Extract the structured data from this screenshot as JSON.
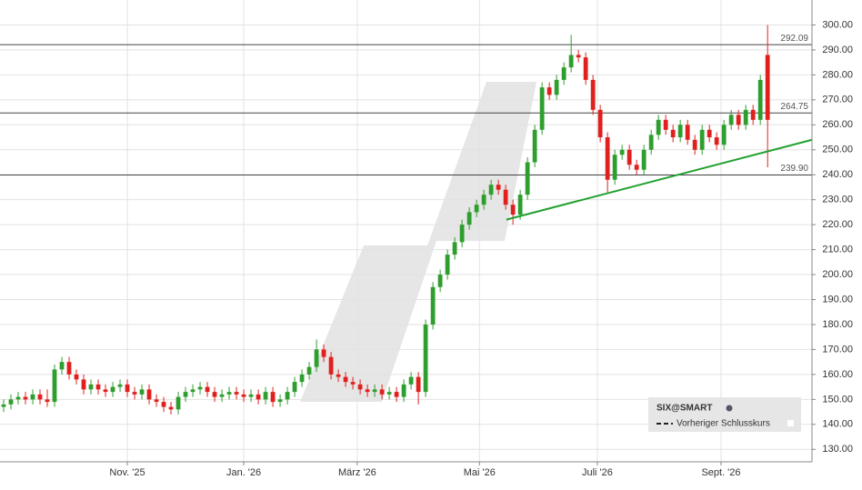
{
  "chart_data": {
    "type": "candlestick",
    "xlim": [
      -0.5,
      111.1
    ],
    "xticks": [
      {
        "value": 17,
        "label": "Nov. '25"
      },
      {
        "value": 33,
        "label": "Jan. '26"
      },
      {
        "value": 48.6,
        "label": "März '26"
      },
      {
        "value": 65.4,
        "label": "Mai '26"
      },
      {
        "value": 81.6,
        "label": "Juli '26"
      },
      {
        "value": 98.6,
        "label": "Sept. '26"
      }
    ],
    "ylim": [
      125,
      310
    ],
    "yticks": [
      {
        "value": 130,
        "label": "130.00"
      },
      {
        "value": 140,
        "label": "140.00"
      },
      {
        "value": 150,
        "label": "150.00"
      },
      {
        "value": 160,
        "label": "160.00"
      },
      {
        "value": 170,
        "label": "170.00"
      },
      {
        "value": 180,
        "label": "180.00"
      },
      {
        "value": 190,
        "label": "190.00"
      },
      {
        "value": 200,
        "label": "200.00"
      },
      {
        "value": 210,
        "label": "210.00"
      },
      {
        "value": 220,
        "label": "220.00"
      },
      {
        "value": 230,
        "label": "230.00"
      },
      {
        "value": 240,
        "label": "240.00"
      },
      {
        "value": 250,
        "label": "250.00"
      },
      {
        "value": 260,
        "label": "260.00"
      },
      {
        "value": 270,
        "label": "270.00"
      },
      {
        "value": 280,
        "label": "280.00"
      },
      {
        "value": 290,
        "label": "290.00"
      },
      {
        "value": 300,
        "label": "300.00"
      }
    ],
    "grid": true,
    "up_color": "#2e9e2e",
    "down_color": "#e0201e",
    "open": [
      147,
      148,
      150,
      151,
      150,
      152,
      150,
      149,
      162,
      165,
      160,
      158,
      154,
      156,
      154,
      153,
      155,
      156,
      153,
      152,
      154,
      150,
      149,
      147,
      146,
      151,
      153,
      154,
      155,
      153,
      151,
      152,
      153,
      152,
      151,
      152,
      150,
      153,
      149,
      150,
      153,
      157,
      160,
      163,
      170,
      167,
      160,
      159,
      157,
      156,
      154,
      153,
      154,
      152,
      153,
      151,
      156,
      159,
      153,
      180,
      195,
      200,
      208,
      213,
      220,
      225,
      228,
      232,
      236,
      234,
      228,
      224,
      232,
      245,
      258,
      275,
      272,
      278,
      283,
      288,
      287,
      278,
      266,
      255,
      238,
      248,
      250,
      244,
      242,
      250,
      256,
      262,
      258,
      255,
      260,
      254,
      250,
      258,
      255,
      252,
      260,
      264,
      260,
      266,
      262,
      288
    ],
    "high": [
      150,
      152,
      153,
      153,
      154,
      154,
      154,
      164,
      167,
      167,
      162,
      160,
      158,
      158,
      156,
      157,
      158,
      158,
      155,
      156,
      156,
      152,
      151,
      149,
      153,
      155,
      156,
      157,
      157,
      155,
      154,
      155,
      155,
      154,
      154,
      154,
      155,
      155,
      152,
      155,
      159,
      162,
      165,
      174,
      172,
      169,
      162,
      161,
      159,
      158,
      156,
      156,
      156,
      155,
      155,
      158,
      161,
      161,
      182,
      197,
      202,
      210,
      215,
      222,
      227,
      230,
      234,
      238,
      238,
      236,
      230,
      234,
      247,
      260,
      277,
      277,
      280,
      285,
      296,
      290,
      289,
      280,
      268,
      257,
      250,
      252,
      252,
      246,
      252,
      258,
      264,
      264,
      260,
      262,
      262,
      256,
      260,
      260,
      257,
      262,
      266,
      266,
      268,
      268,
      280,
      300
    ],
    "low": [
      145,
      146,
      148,
      148,
      148,
      148,
      147,
      147,
      160,
      158,
      156,
      152,
      152,
      152,
      151,
      151,
      153,
      151,
      150,
      150,
      148,
      147,
      145,
      144,
      144,
      149,
      151,
      152,
      151,
      149,
      149,
      150,
      150,
      149,
      149,
      148,
      148,
      147,
      147,
      148,
      151,
      155,
      158,
      161,
      165,
      158,
      157,
      155,
      154,
      152,
      151,
      151,
      150,
      150,
      149,
      149,
      154,
      148,
      151,
      178,
      193,
      198,
      206,
      211,
      218,
      223,
      226,
      230,
      232,
      226,
      220,
      222,
      230,
      243,
      256,
      270,
      270,
      276,
      281,
      285,
      276,
      264,
      253,
      233,
      236,
      246,
      242,
      240,
      240,
      248,
      254,
      256,
      253,
      253,
      252,
      248,
      248,
      253,
      250,
      250,
      258,
      258,
      258,
      260,
      260,
      243
    ],
    "close": [
      148,
      150,
      151,
      150,
      152,
      150,
      149,
      162,
      165,
      160,
      158,
      154,
      156,
      154,
      153,
      155,
      156,
      153,
      152,
      154,
      150,
      149,
      147,
      146,
      151,
      153,
      154,
      155,
      153,
      151,
      152,
      153,
      152,
      151,
      152,
      150,
      153,
      149,
      150,
      153,
      157,
      160,
      163,
      170,
      167,
      160,
      159,
      157,
      156,
      154,
      153,
      154,
      152,
      153,
      151,
      156,
      159,
      153,
      180,
      195,
      200,
      208,
      213,
      220,
      225,
      228,
      232,
      236,
      234,
      228,
      224,
      232,
      245,
      258,
      275,
      272,
      278,
      283,
      288,
      287,
      278,
      266,
      255,
      238,
      248,
      250,
      244,
      242,
      250,
      256,
      262,
      258,
      255,
      260,
      254,
      250,
      258,
      255,
      252,
      260,
      264,
      260,
      266,
      262,
      278,
      262
    ],
    "levels": [
      {
        "value": 292.09,
        "label": "292.09"
      },
      {
        "value": 264.75,
        "label": "264.75"
      },
      {
        "value": 239.9,
        "label": "239.90"
      }
    ],
    "trendline": {
      "color": "#22a030",
      "x": [
        69.1,
        111.1
      ],
      "y": [
        222,
        254
      ]
    },
    "legend": {
      "source": "SIX@SMART",
      "previous_close": "Vorheriger Schlusskurs"
    }
  }
}
